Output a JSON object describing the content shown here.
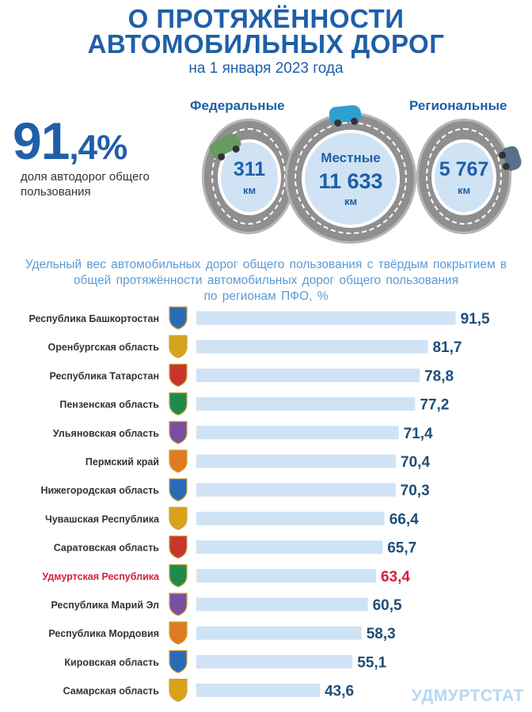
{
  "header": {
    "title_line1": "О ПРОТЯЖЁННОСТИ",
    "title_line2": "АВТОМОБИЛЬНЫХ ДОРОГ",
    "subtitle": "на 1 января 2023 года"
  },
  "summary": {
    "percent_int": "91",
    "percent_dec": ",4%",
    "description": "доля автодорог общего пользования"
  },
  "road_categories": [
    {
      "label": "Федеральные",
      "value": "311",
      "unit": "км"
    },
    {
      "label": "Местные",
      "value": "11 633",
      "unit": "км"
    },
    {
      "label": "Региональные",
      "value": "5 767",
      "unit": "км"
    }
  ],
  "colors": {
    "title": "#1f5fa8",
    "bar": "#cfe3f5",
    "value": "#1f4e79",
    "highlight": "#d6203b",
    "chart_title": "#5b9bd5"
  },
  "chart_data": {
    "type": "bar",
    "orientation": "horizontal",
    "title": "Удельный вес автомобильных  дорог общего пользования  с твёрдым покрытием  в общей  протяжённости  автомобильных  дорог общего  пользования по регионам  ПФО,  %",
    "title_lines": [
      "Удельный вес автомобильных  дорог общего пользования  с твёрдым покрытием  в",
      "общей  протяжённости  автомобильных  дорог общего  пользования",
      "по регионам  ПФО,  %"
    ],
    "categories": [
      "Республика Башкортостан",
      "Оренбургская область",
      "Республика Татарстан",
      "Пензенская область",
      "Ульяновская область",
      "Пермский край",
      "Нижегородская область",
      "Чувашская Республика",
      "Саратовская область",
      "Удмуртская Республика",
      "Республика Марий Эл",
      "Республика Мордовия",
      "Кировская область",
      "Самарская область"
    ],
    "values": [
      91.5,
      81.7,
      78.8,
      77.2,
      71.4,
      70.4,
      70.3,
      66.4,
      65.7,
      63.4,
      60.5,
      58.3,
      55.1,
      43.6
    ],
    "value_labels": [
      "91,5",
      "81,7",
      "78,8",
      "77,2",
      "71,4",
      "70,4",
      "70,3",
      "66,4",
      "65,7",
      "63,4",
      "60,5",
      "58,3",
      "55,1",
      "43,6"
    ],
    "highlight": "Удмуртская Республика",
    "xlim": [
      0,
      100
    ],
    "grid": false,
    "legend": "none"
  },
  "emblem_icons": [
    "bashkortostan-emblem-icon",
    "orenburg-emblem-icon",
    "tatarstan-emblem-icon",
    "penza-emblem-icon",
    "ulyanovsk-emblem-icon",
    "perm-emblem-icon",
    "nizhny-novgorod-emblem-icon",
    "chuvashia-emblem-icon",
    "saratov-emblem-icon",
    "udmurtia-emblem-icon",
    "mari-el-emblem-icon",
    "mordovia-emblem-icon",
    "kirov-emblem-icon",
    "samara-emblem-icon"
  ],
  "watermark": "УДМУРТСТАТ"
}
